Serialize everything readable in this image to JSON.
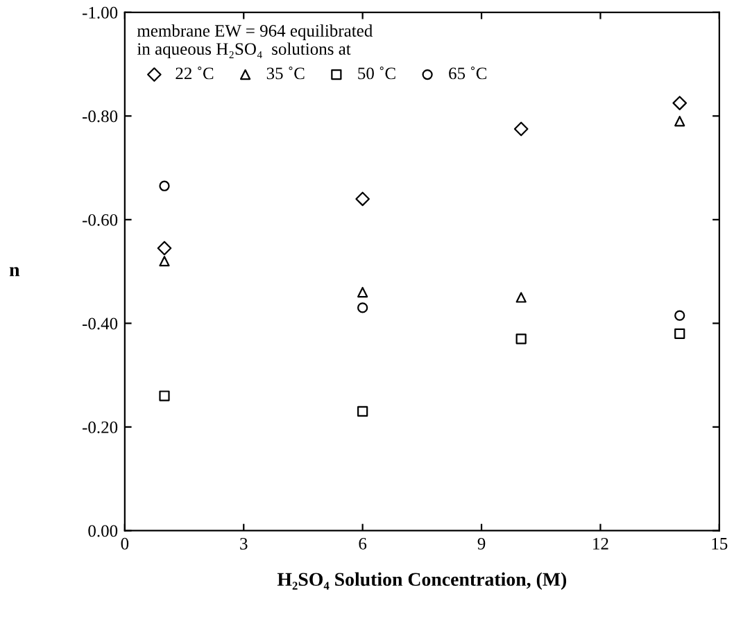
{
  "chart_data": {
    "type": "scatter",
    "xlabel": "H₂SO₄ Solution Concentration, (M)",
    "ylabel": "n",
    "legend_title": "membrane EW = 964 equilibrated\nin aqueous H₂SO₄  solutions at",
    "x": [
      1,
      6,
      10,
      14
    ],
    "series": [
      {
        "name": "22 ˚C",
        "color": "#000000",
        "marker": "diamond",
        "values": [
          -0.545,
          -0.64,
          -0.775,
          -0.825
        ]
      },
      {
        "name": "35 ˚C",
        "color": "#000000",
        "marker": "triangle",
        "values": [
          -0.52,
          -0.46,
          -0.45,
          -0.79
        ]
      },
      {
        "name": "50 ˚C",
        "color": "#000000",
        "marker": "square",
        "values": [
          -0.26,
          -0.23,
          -0.37,
          -0.38
        ]
      },
      {
        "name": "65 ˚C",
        "color": "#000000",
        "marker": "circle",
        "values": [
          -0.665,
          -0.43,
          null,
          -0.415
        ]
      }
    ],
    "xlim": [
      0,
      15
    ],
    "xticks": [
      0,
      3,
      6,
      9,
      12,
      15
    ],
    "ylim": [
      0,
      -1
    ],
    "yticks": [
      {
        "value": 0,
        "label": "0.00"
      },
      {
        "value": -0.2,
        "label": "-0.20"
      },
      {
        "value": -0.4,
        "label": "-0.40"
      },
      {
        "value": -0.6,
        "label": "-0.60"
      },
      {
        "value": -0.8,
        "label": "-0.80"
      },
      {
        "value": -1,
        "label": "-1.00"
      }
    ],
    "grid": false,
    "legend": "top left"
  }
}
